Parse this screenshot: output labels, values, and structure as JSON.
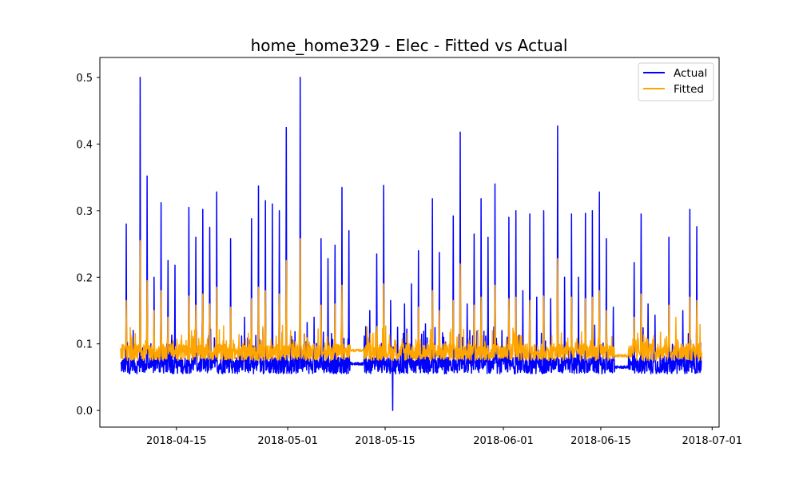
{
  "chart_data": {
    "type": "line",
    "title": "home_home329 - Elec - Fitted vs Actual",
    "xlabel": "",
    "ylabel": "",
    "x_axis": {
      "type": "date",
      "range": [
        "2018-04-04",
        "2018-07-02"
      ],
      "ticks": [
        "2018-04-15",
        "2018-05-01",
        "2018-05-15",
        "2018-06-01",
        "2018-06-15",
        "2018-07-01"
      ]
    },
    "y_axis": {
      "range": [
        -0.025,
        0.53
      ],
      "ticks": [
        0.0,
        0.1,
        0.2,
        0.3,
        0.4,
        0.5
      ],
      "tick_labels": [
        "0.0",
        "0.1",
        "0.2",
        "0.3",
        "0.4",
        "0.5"
      ]
    },
    "grid": false,
    "legend": {
      "placement": "top-right",
      "entries": [
        "Actual",
        "Fitted"
      ]
    },
    "series": [
      {
        "name": "Actual",
        "color": "#0000ff",
        "baseline_range": [
          0.055,
          0.08
        ],
        "peaks": [
          [
            "2018-04-07",
            0.28
          ],
          [
            "2018-04-08",
            0.12
          ],
          [
            "2018-04-09",
            0.5
          ],
          [
            "2018-04-10",
            0.352
          ],
          [
            "2018-04-11",
            0.2
          ],
          [
            "2018-04-12",
            0.312
          ],
          [
            "2018-04-13",
            0.225
          ],
          [
            "2018-04-14",
            0.218
          ],
          [
            "2018-04-16",
            0.305
          ],
          [
            "2018-04-17",
            0.26
          ],
          [
            "2018-04-18",
            0.302
          ],
          [
            "2018-04-19",
            0.275
          ],
          [
            "2018-04-20",
            0.328
          ],
          [
            "2018-04-22",
            0.258
          ],
          [
            "2018-04-24",
            0.14
          ],
          [
            "2018-04-25",
            0.288
          ],
          [
            "2018-04-26",
            0.337
          ],
          [
            "2018-04-27",
            0.315
          ],
          [
            "2018-04-28",
            0.31
          ],
          [
            "2018-04-29",
            0.3
          ],
          [
            "2018-04-30",
            0.425
          ],
          [
            "2018-05-02",
            0.5
          ],
          [
            "2018-05-03",
            0.132
          ],
          [
            "2018-05-04",
            0.14
          ],
          [
            "2018-05-05",
            0.258
          ],
          [
            "2018-05-06",
            0.228
          ],
          [
            "2018-05-07",
            0.248
          ],
          [
            "2018-05-08",
            0.335
          ],
          [
            "2018-05-09",
            0.27
          ],
          [
            "2018-05-11",
            0.15
          ],
          [
            "2018-05-12",
            0.15
          ],
          [
            "2018-05-13",
            0.235
          ],
          [
            "2018-05-14",
            0.338
          ],
          [
            "2018-05-15",
            0.165
          ],
          [
            "2018-05-16",
            0.125
          ],
          [
            "2018-05-17",
            0.16
          ],
          [
            "2018-05-18",
            0.19
          ],
          [
            "2018-05-19",
            0.24
          ],
          [
            "2018-05-20",
            0.13
          ],
          [
            "2018-05-21",
            0.318
          ],
          [
            "2018-05-22",
            0.237
          ],
          [
            "2018-05-24",
            0.292
          ],
          [
            "2018-05-25",
            0.418
          ],
          [
            "2018-05-26",
            0.16
          ],
          [
            "2018-05-27",
            0.265
          ],
          [
            "2018-05-28",
            0.318
          ],
          [
            "2018-05-29",
            0.26
          ],
          [
            "2018-05-30",
            0.34
          ],
          [
            "2018-05-31",
            0.12
          ],
          [
            "2018-06-01",
            0.29
          ],
          [
            "2018-06-02",
            0.3
          ],
          [
            "2018-06-03",
            0.18
          ],
          [
            "2018-06-04",
            0.295
          ],
          [
            "2018-06-05",
            0.17
          ],
          [
            "2018-06-06",
            0.3
          ],
          [
            "2018-06-07",
            0.168
          ],
          [
            "2018-06-08",
            0.427
          ],
          [
            "2018-06-09",
            0.2
          ],
          [
            "2018-06-10",
            0.295
          ],
          [
            "2018-06-11",
            0.2
          ],
          [
            "2018-06-12",
            0.296
          ],
          [
            "2018-06-13",
            0.3
          ],
          [
            "2018-06-14",
            0.328
          ],
          [
            "2018-06-15",
            0.258
          ],
          [
            "2018-06-16",
            0.155
          ],
          [
            "2018-06-19",
            0.222
          ],
          [
            "2018-06-20",
            0.295
          ],
          [
            "2018-06-21",
            0.16
          ],
          [
            "2018-06-22",
            0.143
          ],
          [
            "2018-06-24",
            0.26
          ],
          [
            "2018-06-25",
            0.12
          ],
          [
            "2018-06-26",
            0.15
          ],
          [
            "2018-06-27",
            0.302
          ],
          [
            "2018-06-28",
            0.276
          ],
          [
            "2018-06-29",
            0.1
          ]
        ],
        "gaps": [
          {
            "from": "2018-05-10",
            "to": "2018-05-11",
            "value": 0.07
          },
          {
            "from": "2018-06-17",
            "to": "2018-06-18",
            "value": 0.065
          }
        ],
        "minimum": [
          "2018-05-16",
          0.0
        ]
      },
      {
        "name": "Fitted",
        "color": "#ffa500",
        "baseline_range": [
          0.075,
          0.1
        ],
        "peaks": [
          [
            "2018-04-07",
            0.165
          ],
          [
            "2018-04-09",
            0.255
          ],
          [
            "2018-04-10",
            0.195
          ],
          [
            "2018-04-11",
            0.15
          ],
          [
            "2018-04-12",
            0.18
          ],
          [
            "2018-04-13",
            0.14
          ],
          [
            "2018-04-16",
            0.172
          ],
          [
            "2018-04-17",
            0.158
          ],
          [
            "2018-04-18",
            0.175
          ],
          [
            "2018-04-19",
            0.16
          ],
          [
            "2018-04-20",
            0.185
          ],
          [
            "2018-04-22",
            0.155
          ],
          [
            "2018-04-25",
            0.168
          ],
          [
            "2018-04-26",
            0.185
          ],
          [
            "2018-04-27",
            0.18
          ],
          [
            "2018-04-29",
            0.175
          ],
          [
            "2018-04-30",
            0.225
          ],
          [
            "2018-05-02",
            0.258
          ],
          [
            "2018-05-05",
            0.158
          ],
          [
            "2018-05-07",
            0.16
          ],
          [
            "2018-05-08",
            0.188
          ],
          [
            "2018-05-14",
            0.19
          ],
          [
            "2018-05-19",
            0.155
          ],
          [
            "2018-05-21",
            0.18
          ],
          [
            "2018-05-22",
            0.15
          ],
          [
            "2018-05-24",
            0.165
          ],
          [
            "2018-05-25",
            0.22
          ],
          [
            "2018-05-27",
            0.158
          ],
          [
            "2018-05-28",
            0.17
          ],
          [
            "2018-05-30",
            0.188
          ],
          [
            "2018-06-01",
            0.168
          ],
          [
            "2018-06-02",
            0.17
          ],
          [
            "2018-06-04",
            0.165
          ],
          [
            "2018-06-06",
            0.172
          ],
          [
            "2018-06-08",
            0.228
          ],
          [
            "2018-06-10",
            0.17
          ],
          [
            "2018-06-12",
            0.168
          ],
          [
            "2018-06-13",
            0.17
          ],
          [
            "2018-06-14",
            0.18
          ],
          [
            "2018-06-15",
            0.15
          ],
          [
            "2018-06-19",
            0.14
          ],
          [
            "2018-06-20",
            0.175
          ],
          [
            "2018-06-24",
            0.158
          ],
          [
            "2018-06-25",
            0.14
          ],
          [
            "2018-06-27",
            0.17
          ],
          [
            "2018-06-28",
            0.165
          ]
        ],
        "gaps": [
          {
            "from": "2018-05-10",
            "to": "2018-05-11",
            "value": 0.09
          },
          {
            "from": "2018-06-17",
            "to": "2018-06-18",
            "value": 0.082
          }
        ]
      }
    ]
  }
}
